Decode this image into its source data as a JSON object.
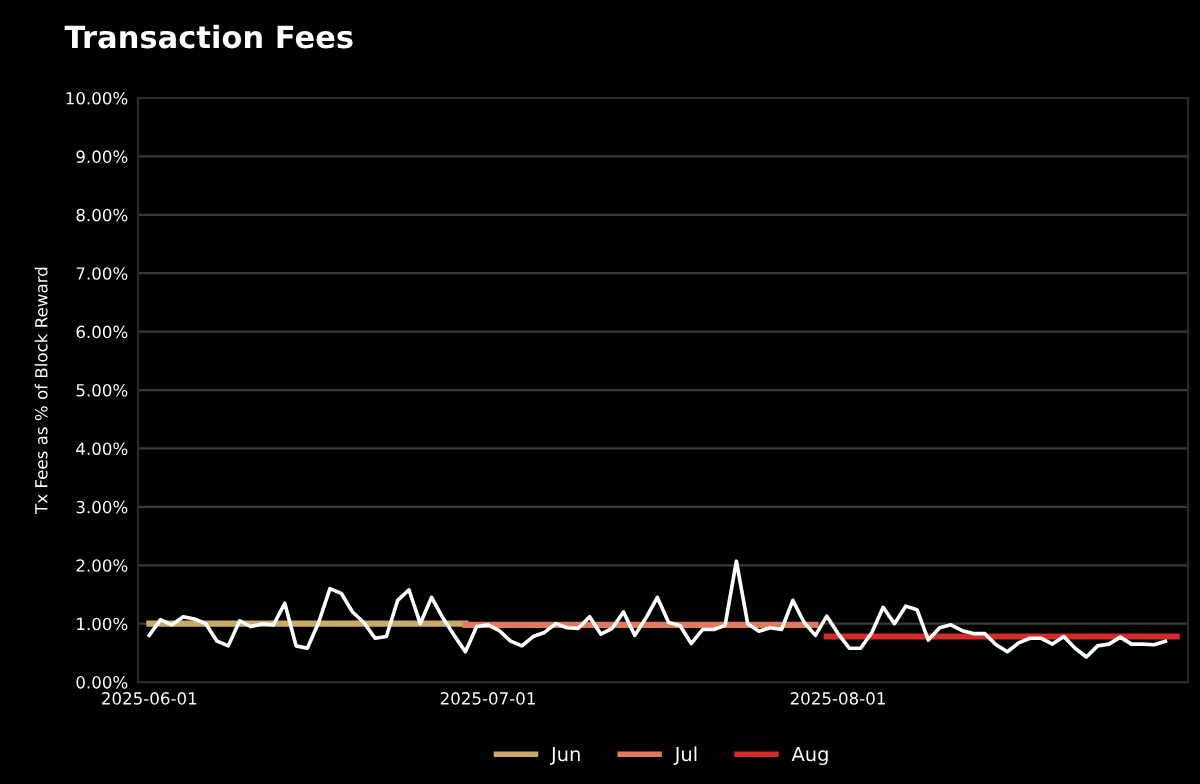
{
  "chart_data": {
    "type": "line",
    "title": "Transaction Fees",
    "ylabel": "Tx Fees as % of Block Reward",
    "x": [
      "2025-06-01",
      "2025-06-02",
      "2025-06-03",
      "2025-06-04",
      "2025-06-05",
      "2025-06-06",
      "2025-06-07",
      "2025-06-08",
      "2025-06-09",
      "2025-06-10",
      "2025-06-11",
      "2025-06-12",
      "2025-06-13",
      "2025-06-14",
      "2025-06-15",
      "2025-06-16",
      "2025-06-17",
      "2025-06-18",
      "2025-06-19",
      "2025-06-20",
      "2025-06-21",
      "2025-06-22",
      "2025-06-23",
      "2025-06-24",
      "2025-06-25",
      "2025-06-26",
      "2025-06-27",
      "2025-06-28",
      "2025-06-29",
      "2025-06-30",
      "2025-07-01",
      "2025-07-02",
      "2025-07-03",
      "2025-07-04",
      "2025-07-05",
      "2025-07-06",
      "2025-07-07",
      "2025-07-08",
      "2025-07-09",
      "2025-07-10",
      "2025-07-11",
      "2025-07-12",
      "2025-07-13",
      "2025-07-14",
      "2025-07-15",
      "2025-07-16",
      "2025-07-17",
      "2025-07-18",
      "2025-07-19",
      "2025-07-20",
      "2025-07-21",
      "2025-07-22",
      "2025-07-23",
      "2025-07-24",
      "2025-07-25",
      "2025-07-26",
      "2025-07-27",
      "2025-07-28",
      "2025-07-29",
      "2025-07-30",
      "2025-07-31",
      "2025-08-01",
      "2025-08-02",
      "2025-08-03",
      "2025-08-04",
      "2025-08-05",
      "2025-08-06",
      "2025-08-07",
      "2025-08-08",
      "2025-08-09",
      "2025-08-10",
      "2025-08-11",
      "2025-08-12",
      "2025-08-13",
      "2025-08-14",
      "2025-08-15",
      "2025-08-16",
      "2025-08-17",
      "2025-08-18",
      "2025-08-19",
      "2025-08-20",
      "2025-08-21",
      "2025-08-22",
      "2025-08-23",
      "2025-08-24",
      "2025-08-25",
      "2025-08-26",
      "2025-08-27",
      "2025-08-28",
      "2025-08-29",
      "2025-08-30"
    ],
    "series": [
      {
        "color": "#ffffff",
        "values": [
          0.8,
          1.07,
          0.98,
          1.12,
          1.08,
          1.0,
          0.7,
          0.62,
          1.05,
          0.95,
          1.0,
          0.98,
          1.35,
          0.62,
          0.58,
          1.02,
          1.6,
          1.52,
          1.2,
          1.02,
          0.75,
          0.78,
          1.4,
          1.58,
          1.0,
          1.45,
          1.1,
          0.8,
          0.52,
          0.95,
          0.98,
          0.88,
          0.7,
          0.62,
          0.78,
          0.85,
          1.0,
          0.93,
          0.92,
          1.12,
          0.82,
          0.92,
          1.2,
          0.8,
          1.1,
          1.45,
          1.02,
          0.97,
          0.66,
          0.9,
          0.9,
          0.97,
          2.07,
          1.0,
          0.87,
          0.93,
          0.9,
          1.4,
          1.02,
          0.8,
          1.13,
          0.83,
          0.58,
          0.58,
          0.85,
          1.28,
          1.0,
          1.3,
          1.24,
          0.72,
          0.93,
          0.98,
          0.88,
          0.83,
          0.83,
          0.64,
          0.52,
          0.67,
          0.75,
          0.75,
          0.65,
          0.78,
          0.58,
          0.43,
          0.62,
          0.65,
          0.77,
          0.65,
          0.65,
          0.64,
          0.7
        ]
      },
      {
        "name": "Jun",
        "color": "#c9aa6b",
        "x": [
          "2025-06-01",
          "2025-06-29"
        ],
        "values": [
          1.0,
          1.0
        ]
      },
      {
        "name": "Jul",
        "color": "#e07a5f",
        "x": [
          "2025-06-29",
          "2025-07-30"
        ],
        "values": [
          0.98,
          0.98
        ]
      },
      {
        "name": "Aug",
        "color": "#d42a2a",
        "x": [
          "2025-07-31",
          "2025-08-31"
        ],
        "values": [
          0.78,
          0.78
        ]
      }
    ],
    "xlim": [
      "2025-05-31",
      "2025-09-01"
    ],
    "xticks": [
      "2025-06-01",
      "2025-07-01",
      "2025-08-01"
    ],
    "ylim": [
      0,
      10
    ],
    "yticks": [
      {
        "value": 0,
        "label": "0.00%"
      },
      {
        "value": 1,
        "label": "1.00%"
      },
      {
        "value": 2,
        "label": "2.00%"
      },
      {
        "value": 3,
        "label": "3.00%"
      },
      {
        "value": 4,
        "label": "4.00%"
      },
      {
        "value": 5,
        "label": "5.00%"
      },
      {
        "value": 6,
        "label": "6.00%"
      },
      {
        "value": 7,
        "label": "7.00%"
      },
      {
        "value": 8,
        "label": "8.00%"
      },
      {
        "value": 9,
        "label": "9.00%"
      },
      {
        "value": 10,
        "label": "10.00%"
      }
    ],
    "grid": "y",
    "legend": "bottom",
    "marker": "none",
    "line_style": "solid"
  }
}
